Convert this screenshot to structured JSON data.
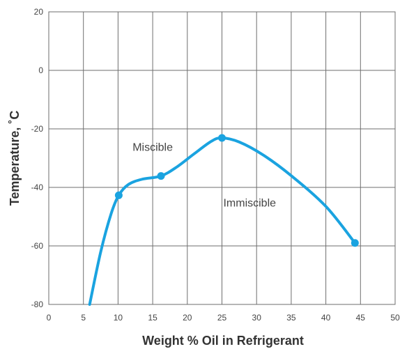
{
  "chart_data": {
    "type": "line",
    "title": "",
    "xlabel": "Weight % Oil in Refrigerant",
    "ylabel": "Temperature, ˚C",
    "xlim": [
      0,
      50
    ],
    "ylim": [
      -80,
      20
    ],
    "x_ticks": [
      0,
      5,
      10,
      15,
      20,
      25,
      30,
      35,
      40,
      45,
      50
    ],
    "y_ticks": [
      -80,
      -60,
      -40,
      -20,
      0,
      20
    ],
    "grid": true,
    "legend": "none",
    "colors": {
      "curve": "#1aa3e0",
      "grid": "#6e6e6e",
      "axis_frame": "#6e6e6e"
    },
    "series": [
      {
        "curve": [
          [
            5.9,
            -80
          ],
          [
            7.5,
            -62
          ],
          [
            9,
            -49
          ],
          [
            10.1,
            -42.7
          ],
          [
            11.5,
            -39
          ],
          [
            13.5,
            -37.2
          ],
          [
            16.2,
            -36.1
          ],
          [
            18.5,
            -33
          ],
          [
            21,
            -28.5
          ],
          [
            23.5,
            -24.2
          ],
          [
            25,
            -23.1
          ],
          [
            27.5,
            -24.5
          ],
          [
            31,
            -29
          ],
          [
            35,
            -36
          ],
          [
            40,
            -46.5
          ],
          [
            44.2,
            -59
          ]
        ],
        "markers": [
          [
            10.1,
            -42.7
          ],
          [
            16.2,
            -36.1
          ],
          [
            25,
            -23.1
          ],
          [
            44.2,
            -59
          ]
        ]
      }
    ],
    "annotations": [
      {
        "text": "Miscible",
        "x": 15,
        "y": -27.5
      },
      {
        "text": "Immiscible",
        "x": 29,
        "y": -46.5
      }
    ]
  }
}
